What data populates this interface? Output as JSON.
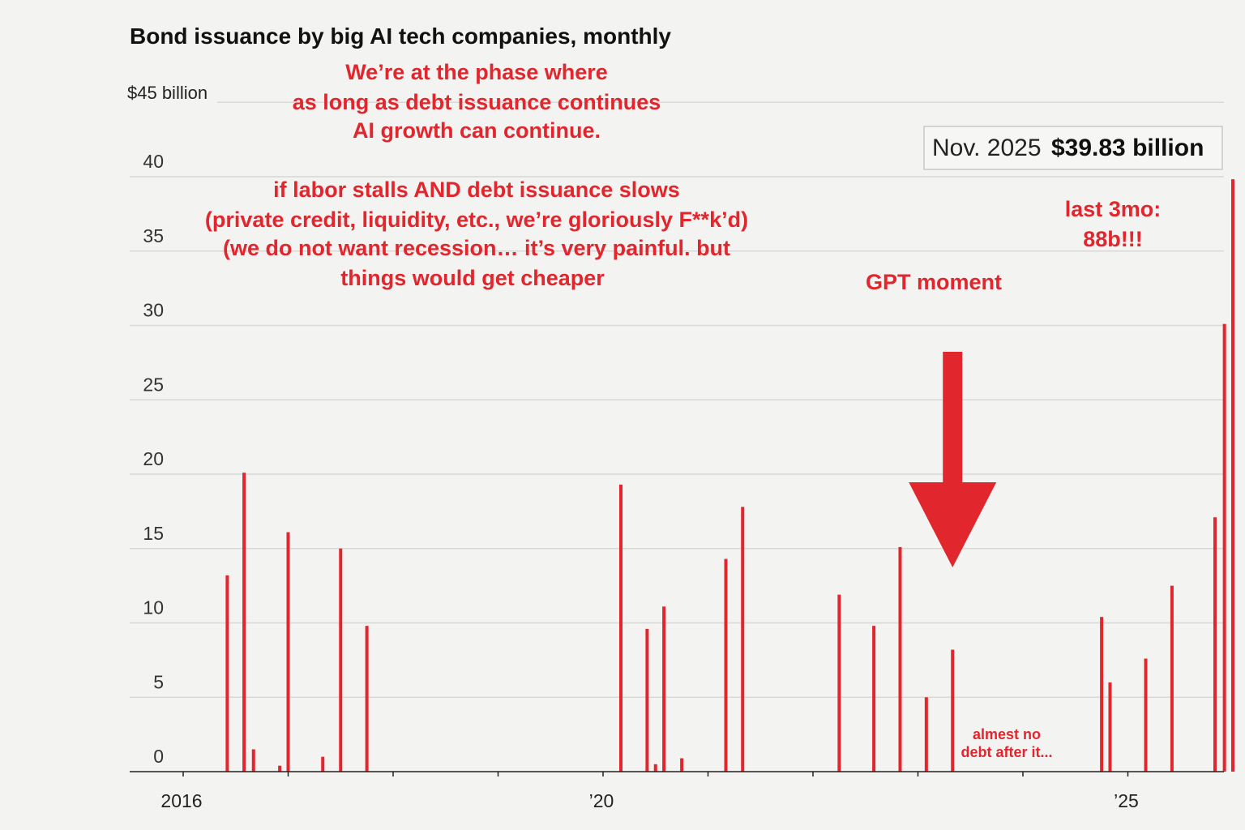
{
  "chart_data": {
    "type": "bar",
    "title": "Bond issuance by big AI tech companies, monthly",
    "unit_label": "$45 billion",
    "ylim": [
      0,
      45
    ],
    "y_ticks": [
      {
        "value": 40,
        "label": "40"
      },
      {
        "value": 35,
        "label": "35"
      },
      {
        "value": 30,
        "label": "30"
      },
      {
        "value": 25,
        "label": "25"
      },
      {
        "value": 20,
        "label": "20"
      },
      {
        "value": 15,
        "label": "15"
      },
      {
        "value": 10,
        "label": "10"
      },
      {
        "value": 5,
        "label": "5"
      },
      {
        "value": 0,
        "label": "0"
      }
    ],
    "x_range": [
      2016.0,
      2026.0
    ],
    "x_ticks": [
      {
        "value": 2016.0,
        "label": "2016"
      },
      {
        "value": 2020.0,
        "label": "’20"
      },
      {
        "value": 2025.0,
        "label": "’25"
      }
    ],
    "x_minor_ticks": [
      2017.0,
      2018.0,
      2019.0,
      2021.0,
      2022.0,
      2023.0,
      2024.0
    ],
    "series": [
      {
        "name": "Bond issuance",
        "color": "#e1262d",
        "points": [
          {
            "date": 2016.42,
            "value": 13.2
          },
          {
            "date": 2016.58,
            "value": 20.1
          },
          {
            "date": 2016.67,
            "value": 1.5
          },
          {
            "date": 2016.92,
            "value": 0.4
          },
          {
            "date": 2017.0,
            "value": 16.1
          },
          {
            "date": 2017.33,
            "value": 1.0
          },
          {
            "date": 2017.5,
            "value": 15.0
          },
          {
            "date": 2017.75,
            "value": 9.8
          },
          {
            "date": 2020.17,
            "value": 19.3
          },
          {
            "date": 2020.42,
            "value": 9.6
          },
          {
            "date": 2020.5,
            "value": 0.5
          },
          {
            "date": 2020.58,
            "value": 11.1
          },
          {
            "date": 2020.75,
            "value": 0.9
          },
          {
            "date": 2021.17,
            "value": 14.3
          },
          {
            "date": 2021.33,
            "value": 17.8
          },
          {
            "date": 2022.25,
            "value": 11.9
          },
          {
            "date": 2022.58,
            "value": 9.8
          },
          {
            "date": 2022.83,
            "value": 15.1
          },
          {
            "date": 2023.08,
            "value": 5.0
          },
          {
            "date": 2023.33,
            "value": 8.2
          },
          {
            "date": 2024.75,
            "value": 10.4
          },
          {
            "date": 2024.83,
            "value": 6.0
          },
          {
            "date": 2025.17,
            "value": 7.6
          },
          {
            "date": 2025.42,
            "value": 12.5
          },
          {
            "date": 2025.83,
            "value": 17.1
          },
          {
            "date": 2025.92,
            "value": 30.1
          },
          {
            "date": 2026.0,
            "value": 39.83
          }
        ]
      }
    ],
    "callout": {
      "date_label": "Nov. 2025",
      "value_label": "$39.83 billion"
    },
    "annotations": {
      "top_note": [
        "We’re at the phase where",
        "as long as debt issuance continues",
        "AI growth can continue."
      ],
      "warning_note": [
        "if labor stalls AND debt issuance slows",
        "(private credit, liquidity, etc., we’re gloriously F**k’d)",
        "(we do not want recession… it’s very painful. but",
        "things would get cheaper"
      ],
      "last_three_months": [
        "last 3mo:",
        "88b!!!"
      ],
      "gpt_moment": "GPT moment",
      "gpt_moment_date": 2023.33,
      "almost_no_debt": [
        "almest no",
        "debt after it..."
      ]
    }
  }
}
